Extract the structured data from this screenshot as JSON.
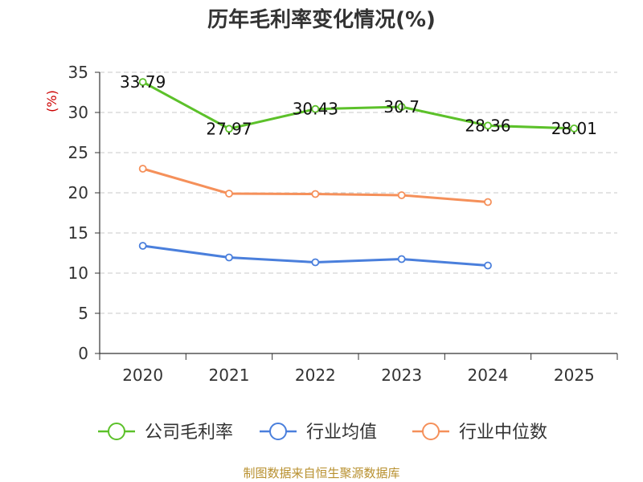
{
  "chart_data": {
    "type": "line",
    "title": "历年毛利率变化情况(%)",
    "ylabel": "(%)",
    "xlabel": "",
    "categories": [
      "2020",
      "2021",
      "2022",
      "2023",
      "2024",
      "2025"
    ],
    "ylim": [
      0,
      35
    ],
    "yticks": [
      "0",
      "5",
      "10",
      "15",
      "20",
      "25",
      "30",
      "35"
    ],
    "grid": true,
    "legend_position": "bottom",
    "series": [
      {
        "name": "公司毛利率",
        "color": "#5cc12a",
        "values": [
          33.79,
          27.97,
          30.43,
          30.7,
          28.36,
          28.01
        ],
        "labels": [
          "33.79",
          "27.97",
          "30.43",
          "30.7",
          "28.36",
          "28.01"
        ]
      },
      {
        "name": "行业均值",
        "color": "#4a7fdc",
        "values": [
          13.4,
          11.95,
          11.35,
          11.75,
          10.95,
          null
        ]
      },
      {
        "name": "行业中位数",
        "color": "#f5905a",
        "values": [
          23.0,
          19.9,
          19.85,
          19.7,
          18.85,
          null
        ]
      }
    ],
    "source": "制图数据来自恒生聚源数据库"
  }
}
